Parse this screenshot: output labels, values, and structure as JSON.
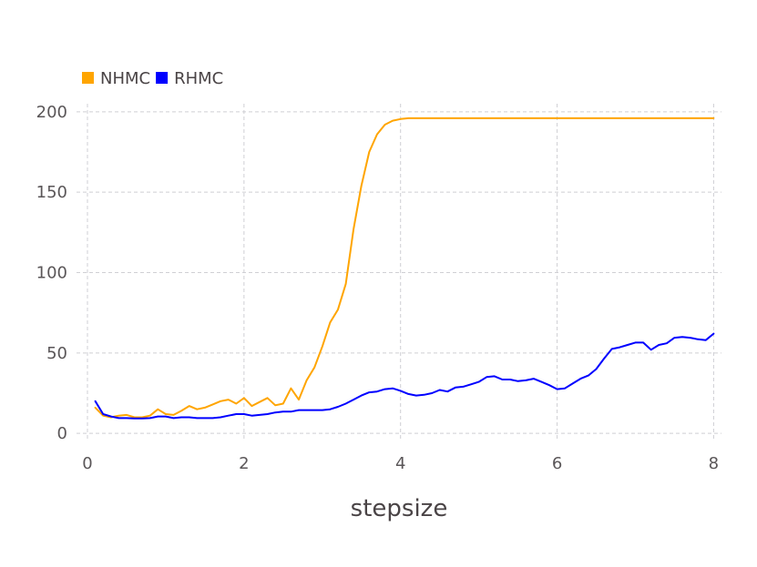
{
  "chart_data": {
    "type": "line",
    "title": "",
    "xlabel": "stepsize",
    "ylabel": "",
    "xlim": [
      0,
      8.1
    ],
    "ylim": [
      -5,
      205
    ],
    "xticks": [
      0,
      2,
      4,
      6,
      8
    ],
    "yticks": [
      0,
      50,
      100,
      150,
      200
    ],
    "grid": true,
    "legend_position": "top-left",
    "series": [
      {
        "name": "NHMC",
        "color": "#FFA500",
        "x": [
          0.1,
          0.2,
          0.3,
          0.4,
          0.5,
          0.6,
          0.7,
          0.8,
          0.9,
          1.0,
          1.1,
          1.2,
          1.3,
          1.4,
          1.5,
          1.6,
          1.7,
          1.8,
          1.9,
          2.0,
          2.1,
          2.2,
          2.3,
          2.4,
          2.5,
          2.6,
          2.7,
          2.8,
          2.9,
          3.0,
          3.1,
          3.2,
          3.3,
          3.4,
          3.5,
          3.6,
          3.7,
          3.8,
          3.9,
          4.0,
          4.1,
          4.2,
          4.3,
          4.4,
          4.5,
          5.0,
          5.5,
          6.0,
          6.5,
          7.0,
          7.5,
          8.0
        ],
        "y": [
          16,
          11,
          10,
          11,
          11.5,
          10,
          10,
          11,
          15,
          12,
          11.5,
          14,
          17,
          15,
          16,
          18,
          20,
          21,
          18.5,
          22,
          17,
          19.5,
          22,
          17.5,
          18.5,
          28,
          21,
          33,
          41,
          54,
          69,
          77,
          93,
          127,
          154,
          175,
          186,
          192,
          194.5,
          195.5,
          196,
          196,
          196,
          196,
          196,
          196,
          196,
          196,
          196,
          196,
          196,
          196
        ]
      },
      {
        "name": "RHMC",
        "color": "#0000FF",
        "x": [
          0.1,
          0.2,
          0.3,
          0.4,
          0.5,
          0.6,
          0.7,
          0.8,
          0.9,
          1.0,
          1.1,
          1.2,
          1.3,
          1.4,
          1.5,
          1.6,
          1.7,
          1.8,
          1.9,
          2.0,
          2.1,
          2.2,
          2.3,
          2.4,
          2.5,
          2.6,
          2.7,
          2.8,
          2.9,
          3.0,
          3.1,
          3.2,
          3.3,
          3.4,
          3.5,
          3.6,
          3.7,
          3.8,
          3.9,
          4.0,
          4.1,
          4.2,
          4.3,
          4.4,
          4.5,
          4.6,
          4.7,
          4.8,
          4.9,
          5.0,
          5.1,
          5.2,
          5.3,
          5.4,
          5.5,
          5.6,
          5.7,
          5.8,
          5.9,
          6.0,
          6.1,
          6.2,
          6.3,
          6.4,
          6.5,
          6.6,
          6.7,
          6.8,
          6.9,
          7.0,
          7.1,
          7.2,
          7.3,
          7.4,
          7.5,
          7.6,
          7.7,
          7.8,
          7.9,
          8.0
        ],
        "y": [
          20,
          12,
          10.5,
          9.5,
          9.5,
          9.3,
          9.3,
          9.5,
          10.5,
          10.5,
          9.5,
          10,
          10,
          9.5,
          9.5,
          9.5,
          10,
          11,
          12,
          12,
          11,
          11.5,
          12,
          13,
          13.5,
          13.5,
          14.5,
          14.5,
          14.5,
          14.5,
          15,
          16.5,
          18.5,
          21,
          23.5,
          25.5,
          26,
          27.5,
          28,
          26.5,
          24.5,
          23.5,
          24,
          25,
          27,
          26,
          28.5,
          29,
          30.5,
          32,
          35,
          35.5,
          33.5,
          33.5,
          32.5,
          33,
          34,
          32,
          30,
          27.5,
          28,
          31,
          34,
          36,
          40,
          46.5,
          52.5,
          53.5,
          55,
          56.5,
          56.5,
          52,
          55,
          56,
          59.5,
          60,
          59.5,
          58.5,
          58,
          62
        ]
      }
    ]
  }
}
